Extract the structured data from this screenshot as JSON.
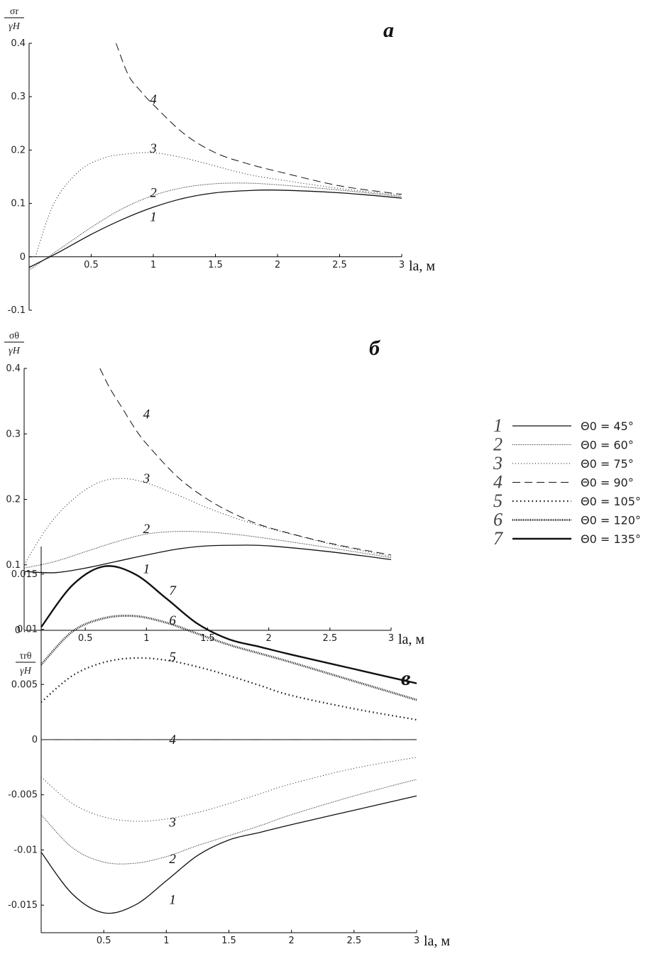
{
  "chart_data": [
    {
      "type": "line",
      "panel_letter": "а",
      "ylabel_num": "σr",
      "ylabel_den": "γH",
      "xlabel": "la, м",
      "xlim": [
        0,
        3
      ],
      "ylim": [
        -0.1,
        0.4
      ],
      "xticks": [
        "0.5",
        "1",
        "1.5",
        "2",
        "2.5",
        "3"
      ],
      "yticks": [
        "-0.1",
        "0",
        "0.1",
        "0.2",
        "0.3",
        "0.4"
      ],
      "series": [
        {
          "name": "1",
          "x": [
            0,
            0.25,
            0.5,
            0.75,
            1,
            1.25,
            1.5,
            1.75,
            2,
            2.5,
            3
          ],
          "values": [
            -0.02,
            0.01,
            0.042,
            0.07,
            0.093,
            0.11,
            0.12,
            0.124,
            0.125,
            0.12,
            0.11
          ]
        },
        {
          "name": "2",
          "x": [
            0,
            0.25,
            0.5,
            0.75,
            1,
            1.25,
            1.5,
            1.75,
            2,
            2.5,
            3
          ],
          "values": [
            -0.025,
            0.015,
            0.055,
            0.09,
            0.115,
            0.13,
            0.137,
            0.138,
            0.135,
            0.125,
            0.113
          ]
        },
        {
          "name": "3",
          "x": [
            0.05,
            0.2,
            0.4,
            0.6,
            0.8,
            1,
            1.25,
            1.5,
            1.75,
            2,
            2.5,
            3
          ],
          "values": [
            0,
            0.1,
            0.16,
            0.185,
            0.193,
            0.195,
            0.185,
            0.17,
            0.155,
            0.145,
            0.128,
            0.115
          ]
        },
        {
          "name": "4",
          "x": [
            0.7,
            0.8,
            0.9,
            1,
            1.25,
            1.5,
            1.75,
            2,
            2.5,
            3
          ],
          "values": [
            0.4,
            0.34,
            0.31,
            0.285,
            0.23,
            0.195,
            0.175,
            0.16,
            0.133,
            0.117
          ]
        }
      ],
      "labels": [
        {
          "text": "1",
          "x": 1.0,
          "y": 0.075
        },
        {
          "text": "2",
          "x": 1.0,
          "y": 0.12
        },
        {
          "text": "3",
          "x": 1.0,
          "y": 0.203
        },
        {
          "text": "4",
          "x": 1.0,
          "y": 0.295
        }
      ]
    },
    {
      "type": "line",
      "panel_letter": "б",
      "ylabel_num": "σθ",
      "ylabel_den": "γH",
      "xlabel": "la, м",
      "xlim": [
        0,
        3
      ],
      "ylim": [
        0,
        0.4
      ],
      "xticks": [
        "0.5",
        "1",
        "1.5",
        "2",
        "2.5",
        "3"
      ],
      "yticks": [
        "0",
        "0.1",
        "0.2",
        "0.3",
        "0.4"
      ],
      "series": [
        {
          "name": "1",
          "x": [
            0,
            0.25,
            0.5,
            0.75,
            1,
            1.25,
            1.5,
            1.75,
            2,
            2.5,
            3
          ],
          "values": [
            0.09,
            0.088,
            0.095,
            0.105,
            0.115,
            0.124,
            0.129,
            0.13,
            0.129,
            0.12,
            0.108
          ]
        },
        {
          "name": "2",
          "x": [
            0,
            0.25,
            0.5,
            0.75,
            1,
            1.25,
            1.5,
            1.75,
            2,
            2.5,
            3
          ],
          "values": [
            0.095,
            0.105,
            0.12,
            0.135,
            0.147,
            0.151,
            0.15,
            0.146,
            0.14,
            0.126,
            0.111
          ]
        },
        {
          "name": "3",
          "x": [
            0,
            0.2,
            0.4,
            0.6,
            0.8,
            1,
            1.25,
            1.5,
            1.75,
            2,
            2.5,
            3
          ],
          "values": [
            0.1,
            0.16,
            0.2,
            0.225,
            0.232,
            0.225,
            0.207,
            0.187,
            0.17,
            0.156,
            0.132,
            0.113
          ]
        },
        {
          "name": "4",
          "x": [
            0.62,
            0.7,
            0.8,
            0.9,
            1,
            1.25,
            1.5,
            1.75,
            2,
            2.5,
            3
          ],
          "values": [
            0.4,
            0.37,
            0.34,
            0.31,
            0.285,
            0.235,
            0.2,
            0.175,
            0.157,
            0.133,
            0.115
          ]
        }
      ],
      "labels": [
        {
          "text": "1",
          "x": 1.0,
          "y": 0.094
        },
        {
          "text": "2",
          "x": 1.0,
          "y": 0.155
        },
        {
          "text": "3",
          "x": 1.0,
          "y": 0.232
        },
        {
          "text": "4",
          "x": 1.0,
          "y": 0.33
        }
      ]
    },
    {
      "type": "line",
      "panel_letter": "в",
      "ylabel_num": "τrθ",
      "ylabel_den": "γH",
      "xlabel": "la, м",
      "xlim": [
        0,
        3
      ],
      "ylim": [
        -0.0175,
        0.0175
      ],
      "xticks": [
        "0.5",
        "1",
        "1.5",
        "2",
        "2.5",
        "3"
      ],
      "yticks": [
        "0.015",
        "0.01",
        "0.005",
        "0",
        "-0.005",
        "-0.01",
        "-0.015"
      ],
      "series": [
        {
          "name": "1",
          "x": [
            0,
            0.25,
            0.5,
            0.75,
            1,
            1.25,
            1.5,
            1.75,
            2,
            2.5,
            3
          ],
          "values": [
            -0.0102,
            -0.014,
            -0.0157,
            -0.015,
            -0.0128,
            -0.0105,
            -0.0091,
            -0.0084,
            -0.0077,
            -0.0064,
            -0.0051
          ]
        },
        {
          "name": "2",
          "x": [
            0,
            0.25,
            0.5,
            0.75,
            1,
            1.25,
            1.5,
            1.75,
            2,
            2.5,
            3
          ],
          "values": [
            -0.0068,
            -0.0098,
            -0.0111,
            -0.0112,
            -0.0106,
            -0.0096,
            -0.0087,
            -0.0078,
            -0.0068,
            -0.0051,
            -0.0036
          ]
        },
        {
          "name": "3",
          "x": [
            0,
            0.25,
            0.5,
            0.75,
            1,
            1.25,
            1.5,
            1.75,
            2,
            2.5,
            3
          ],
          "values": [
            -0.0034,
            -0.0058,
            -0.007,
            -0.0074,
            -0.0072,
            -0.0066,
            -0.0058,
            -0.0049,
            -0.004,
            -0.0026,
            -0.0016
          ]
        },
        {
          "name": "4",
          "x": [
            0,
            3
          ],
          "values": [
            0,
            0
          ]
        },
        {
          "name": "5",
          "x": [
            0,
            0.25,
            0.5,
            0.75,
            1,
            1.25,
            1.5,
            1.75,
            2,
            2.5,
            3
          ],
          "values": [
            0.0034,
            0.0058,
            0.007,
            0.0074,
            0.0072,
            0.0066,
            0.0058,
            0.0049,
            0.004,
            0.0028,
            0.0018
          ]
        },
        {
          "name": "6",
          "x": [
            0,
            0.25,
            0.5,
            0.75,
            1,
            1.25,
            1.5,
            1.75,
            2,
            2.5,
            3
          ],
          "values": [
            0.0068,
            0.0098,
            0.011,
            0.0112,
            0.0106,
            0.0096,
            0.0086,
            0.0078,
            0.007,
            0.0053,
            0.0036
          ]
        },
        {
          "name": "7",
          "x": [
            0,
            0.25,
            0.5,
            0.75,
            1,
            1.25,
            1.5,
            1.75,
            2,
            2.5,
            3
          ],
          "values": [
            0.0102,
            0.014,
            0.0157,
            0.015,
            0.0128,
            0.0105,
            0.0091,
            0.0084,
            0.0077,
            0.0064,
            0.0051
          ]
        }
      ],
      "labels": [
        {
          "text": "1",
          "x": 1.05,
          "y": -0.0145
        },
        {
          "text": "2",
          "x": 1.05,
          "y": -0.0108
        },
        {
          "text": "3",
          "x": 1.05,
          "y": -0.0075
        },
        {
          "text": "4",
          "x": 1.05,
          "y": 0
        },
        {
          "text": "5",
          "x": 1.05,
          "y": 0.0075
        },
        {
          "text": "6",
          "x": 1.05,
          "y": 0.0108
        },
        {
          "text": "7",
          "x": 1.05,
          "y": 0.0135
        }
      ]
    }
  ],
  "legend": {
    "placement": "right",
    "items": [
      {
        "num": "1",
        "text": "Θ0 = 45°",
        "style": "solid-thin"
      },
      {
        "num": "2",
        "text": "Θ0 = 60°",
        "style": "dotted-fine"
      },
      {
        "num": "3",
        "text": "Θ0 = 75°",
        "style": "dotted-sparse"
      },
      {
        "num": "4",
        "text": "Θ0 = 90°",
        "style": "dashed"
      },
      {
        "num": "5",
        "text": "Θ0 = 105°",
        "style": "dotted-bold"
      },
      {
        "num": "6",
        "text": "Θ0 = 120°",
        "style": "dotted-thick"
      },
      {
        "num": "7",
        "text": "Θ0 = 135°",
        "style": "solid-thick"
      }
    ]
  }
}
